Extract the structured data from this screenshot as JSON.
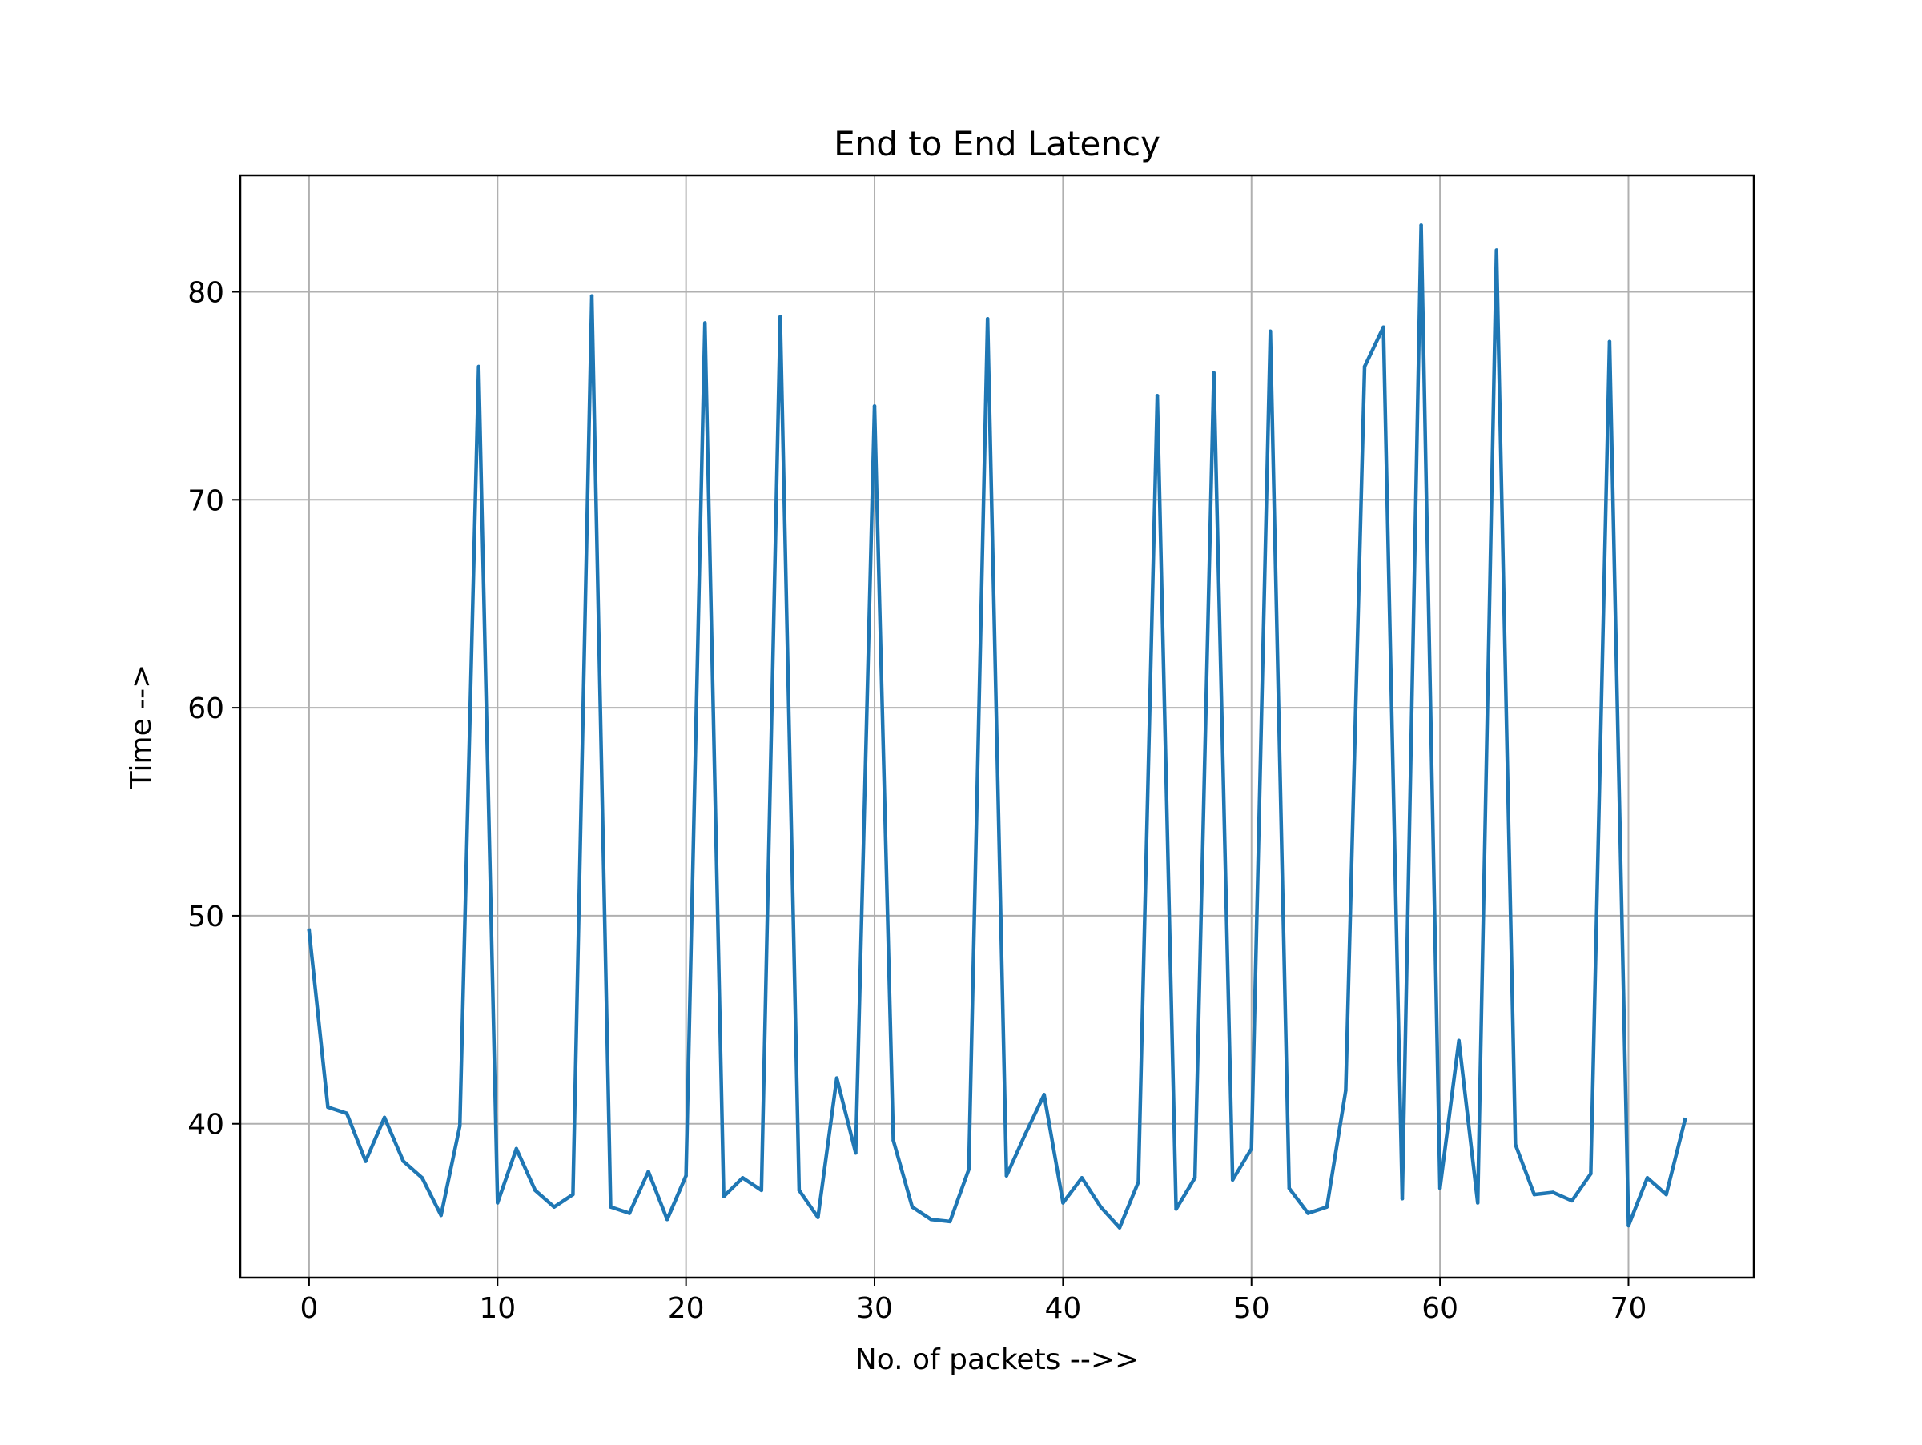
{
  "chart_data": {
    "type": "line",
    "title": "End to End Latency",
    "xlabel": "No. of packets -->>",
    "ylabel": "Time -->",
    "xlim": [
      -3.65,
      76.65
    ],
    "ylim": [
      32.6,
      85.6
    ],
    "xticks": [
      0,
      10,
      20,
      30,
      40,
      50,
      60,
      70
    ],
    "yticks": [
      40,
      50,
      60,
      70,
      80
    ],
    "grid": true,
    "line_color": "#1f77b4",
    "series": [
      {
        "x": [
          0,
          1,
          2,
          3,
          4,
          5,
          6,
          7,
          8,
          9,
          10,
          11,
          12,
          13,
          14,
          15,
          16,
          17,
          18,
          19,
          20,
          21,
          22,
          23,
          24,
          25,
          26,
          27,
          28,
          29,
          30,
          31,
          32,
          33,
          34,
          35,
          36,
          37,
          38,
          39,
          40,
          41,
          42,
          43,
          44,
          45,
          46,
          47,
          48,
          49,
          50,
          51,
          52,
          53,
          54,
          55,
          56,
          57,
          58,
          59,
          60,
          61,
          62,
          63,
          64,
          65,
          66,
          67,
          68,
          69,
          70,
          71,
          72,
          73
        ],
        "values": [
          49.3,
          40.8,
          40.5,
          38.2,
          40.3,
          38.2,
          37.4,
          35.6,
          39.9,
          76.4,
          36.2,
          38.8,
          36.8,
          36.0,
          36.6,
          79.8,
          36.0,
          35.7,
          37.7,
          35.4,
          37.5,
          78.5,
          36.5,
          37.4,
          36.8,
          78.8,
          36.8,
          35.5,
          42.2,
          38.6,
          74.5,
          39.2,
          36.0,
          35.4,
          35.3,
          37.8,
          78.7,
          37.5,
          39.5,
          41.4,
          36.2,
          37.4,
          36.0,
          35.0,
          37.2,
          75.0,
          35.9,
          37.4,
          76.1,
          37.3,
          38.8,
          78.1,
          36.9,
          35.7,
          36.0,
          41.6,
          76.4,
          78.3,
          36.4,
          83.2,
          36.9,
          44.0,
          36.2,
          82.0,
          39.0,
          36.6,
          36.7,
          36.3,
          37.6,
          77.6,
          35.1,
          37.4,
          36.6,
          40.2
        ]
      }
    ]
  }
}
